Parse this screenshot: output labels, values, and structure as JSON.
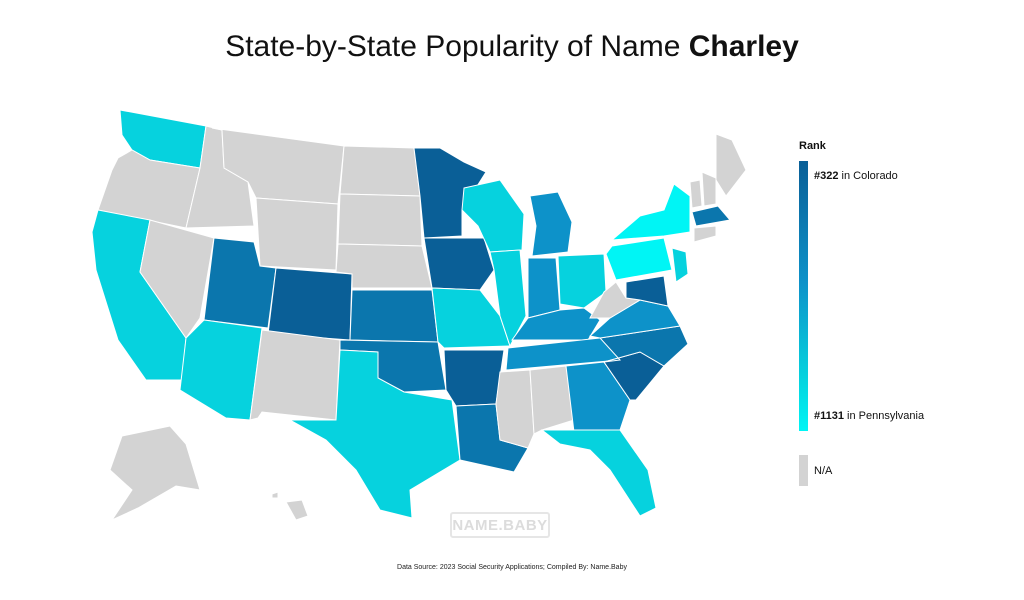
{
  "title": {
    "prefix": "State-by-State Popularity of Name ",
    "name": "Charley"
  },
  "legend": {
    "heading": "Rank",
    "top_rank": "#322",
    "top_state": " in Colorado",
    "bottom_rank": "#1131",
    "bottom_state": " in Pennsylvania",
    "na_label": "N/A",
    "na_color": "#d3d3d3"
  },
  "watermark": "NAME.BABY",
  "source": "Data Source: 2023 Social Security Applications; Compiled By: Name.Baby",
  "colors": {
    "darkest": "#0a5f97",
    "dark": "#0b76ad",
    "mid": "#0d92c9",
    "light": "#06d2de",
    "lightest": "#00f5f5",
    "na": "#d3d3d3"
  },
  "states": [
    {
      "id": "WA",
      "shade": "light"
    },
    {
      "id": "OR",
      "shade": "na"
    },
    {
      "id": "CA",
      "shade": "light"
    },
    {
      "id": "NV",
      "shade": "na"
    },
    {
      "id": "ID",
      "shade": "na"
    },
    {
      "id": "MT",
      "shade": "na"
    },
    {
      "id": "WY",
      "shade": "na"
    },
    {
      "id": "UT",
      "shade": "dark"
    },
    {
      "id": "AZ",
      "shade": "light"
    },
    {
      "id": "CO",
      "shade": "darkest"
    },
    {
      "id": "NM",
      "shade": "na"
    },
    {
      "id": "ND",
      "shade": "na"
    },
    {
      "id": "SD",
      "shade": "na"
    },
    {
      "id": "NE",
      "shade": "na"
    },
    {
      "id": "KS",
      "shade": "dark"
    },
    {
      "id": "OK",
      "shade": "dark"
    },
    {
      "id": "TX",
      "shade": "light"
    },
    {
      "id": "MN",
      "shade": "darkest"
    },
    {
      "id": "IA",
      "shade": "darkest"
    },
    {
      "id": "MO",
      "shade": "light"
    },
    {
      "id": "AR",
      "shade": "darkest"
    },
    {
      "id": "LA",
      "shade": "dark"
    },
    {
      "id": "WI",
      "shade": "light"
    },
    {
      "id": "IL",
      "shade": "light"
    },
    {
      "id": "MI",
      "shade": "mid"
    },
    {
      "id": "IN",
      "shade": "mid"
    },
    {
      "id": "OH",
      "shade": "light"
    },
    {
      "id": "KY",
      "shade": "mid"
    },
    {
      "id": "TN",
      "shade": "mid"
    },
    {
      "id": "MS",
      "shade": "na"
    },
    {
      "id": "AL",
      "shade": "na"
    },
    {
      "id": "GA",
      "shade": "mid"
    },
    {
      "id": "FL",
      "shade": "light"
    },
    {
      "id": "SC",
      "shade": "darkest"
    },
    {
      "id": "NC",
      "shade": "dark"
    },
    {
      "id": "VA",
      "shade": "mid"
    },
    {
      "id": "WV",
      "shade": "na"
    },
    {
      "id": "MD",
      "shade": "darkest"
    },
    {
      "id": "PA",
      "shade": "lightest"
    },
    {
      "id": "NY",
      "shade": "lightest"
    },
    {
      "id": "NJ",
      "shade": "light"
    },
    {
      "id": "ME",
      "shade": "na"
    },
    {
      "id": "VT",
      "shade": "na"
    },
    {
      "id": "NH",
      "shade": "na"
    },
    {
      "id": "MA",
      "shade": "dark"
    },
    {
      "id": "CT",
      "shade": "na"
    },
    {
      "id": "AK",
      "shade": "na"
    },
    {
      "id": "HI",
      "shade": "na"
    }
  ]
}
